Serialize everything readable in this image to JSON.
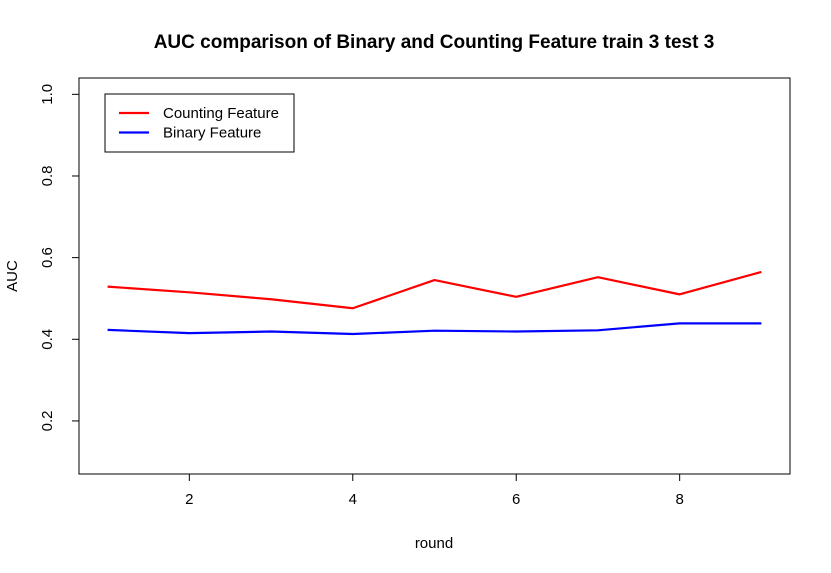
{
  "chart_data": {
    "type": "line",
    "title": "AUC comparison of Binary and Counting Feature train 3 test 3",
    "xlabel": "round",
    "ylabel": "AUC",
    "x": [
      1,
      2,
      3,
      4,
      5,
      6,
      7,
      8,
      9
    ],
    "xlim": [
      0.65,
      9.35
    ],
    "ylim": [
      0.07,
      1.04
    ],
    "x_ticks": [
      2,
      4,
      6,
      8
    ],
    "y_ticks": [
      0.2,
      0.4,
      0.6,
      0.8,
      1.0
    ],
    "x_tick_labels": [
      "2",
      "4",
      "6",
      "8"
    ],
    "y_tick_labels": [
      "0.2",
      "0.4",
      "0.6",
      "0.8",
      "1.0"
    ],
    "grid": false,
    "legend_position": "top-left",
    "series": [
      {
        "name": "Counting Feature",
        "color": "#ff0000",
        "values": [
          0.529,
          0.515,
          0.498,
          0.476,
          0.545,
          0.504,
          0.552,
          0.51,
          0.565
        ]
      },
      {
        "name": "Binary Feature",
        "color": "#0000ff",
        "values": [
          0.423,
          0.415,
          0.419,
          0.413,
          0.421,
          0.419,
          0.422,
          0.439,
          0.439
        ]
      }
    ]
  }
}
